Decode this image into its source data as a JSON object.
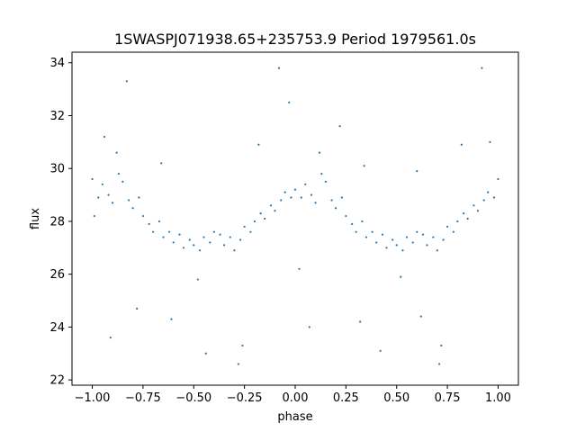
{
  "chart_data": {
    "type": "scatter",
    "title": "1SWASPJ071938.65+235753.9 Period 1979561.0s",
    "xlabel": "phase",
    "ylabel": "flux",
    "xlim": [
      -1.1,
      1.1
    ],
    "ylim": [
      21.8,
      34.4
    ],
    "xticks": [
      -1.0,
      -0.75,
      -0.5,
      -0.25,
      0.0,
      0.25,
      0.5,
      0.75,
      1.0
    ],
    "xtick_labels": [
      "−1.00",
      "−0.75",
      "−0.50",
      "−0.25",
      "0.00",
      "0.25",
      "0.50",
      "0.75",
      "1.00"
    ],
    "yticks": [
      22,
      24,
      26,
      28,
      30,
      32,
      34
    ],
    "ytick_labels": [
      "22",
      "24",
      "26",
      "28",
      "30",
      "32",
      "34"
    ],
    "grid": false,
    "legend": "none",
    "marker_color": "#1f77b4",
    "series": [
      {
        "points": [
          [
            -1.0,
            29.6
          ],
          [
            -0.97,
            28.9
          ],
          [
            -0.95,
            29.4
          ],
          [
            -0.92,
            29.0
          ],
          [
            -0.9,
            28.7
          ],
          [
            -0.87,
            29.8
          ],
          [
            -0.85,
            29.5
          ],
          [
            -0.82,
            28.8
          ],
          [
            -0.8,
            28.5
          ],
          [
            -0.77,
            28.9
          ],
          [
            -0.75,
            28.2
          ],
          [
            -0.72,
            27.9
          ],
          [
            -0.7,
            27.6
          ],
          [
            -0.67,
            28.0
          ],
          [
            -0.65,
            27.4
          ],
          [
            -0.62,
            27.6
          ],
          [
            -0.6,
            27.2
          ],
          [
            -0.57,
            27.5
          ],
          [
            -0.55,
            27.0
          ],
          [
            -0.52,
            27.3
          ],
          [
            -0.5,
            27.1
          ],
          [
            -0.47,
            26.9
          ],
          [
            -0.45,
            27.4
          ],
          [
            -0.42,
            27.2
          ],
          [
            -0.4,
            27.6
          ],
          [
            -0.37,
            27.5
          ],
          [
            -0.35,
            27.1
          ],
          [
            -0.32,
            27.4
          ],
          [
            -0.3,
            26.9
          ],
          [
            -0.27,
            27.3
          ],
          [
            -0.25,
            27.8
          ],
          [
            -0.22,
            27.6
          ],
          [
            -0.2,
            28.0
          ],
          [
            -0.17,
            28.3
          ],
          [
            -0.15,
            28.1
          ],
          [
            -0.12,
            28.6
          ],
          [
            -0.1,
            28.4
          ],
          [
            -0.07,
            28.8
          ],
          [
            -0.05,
            29.1
          ],
          [
            -0.02,
            28.9
          ],
          [
            0.0,
            29.2
          ],
          [
            0.03,
            28.9
          ],
          [
            0.05,
            29.4
          ],
          [
            0.08,
            29.0
          ],
          [
            0.1,
            28.7
          ],
          [
            0.13,
            29.8
          ],
          [
            0.15,
            29.5
          ],
          [
            0.18,
            28.8
          ],
          [
            0.2,
            28.5
          ],
          [
            0.23,
            28.9
          ],
          [
            0.25,
            28.2
          ],
          [
            0.28,
            27.9
          ],
          [
            0.3,
            27.6
          ],
          [
            0.33,
            28.0
          ],
          [
            0.35,
            27.4
          ],
          [
            0.38,
            27.6
          ],
          [
            0.4,
            27.2
          ],
          [
            0.43,
            27.5
          ],
          [
            0.45,
            27.0
          ],
          [
            0.48,
            27.3
          ],
          [
            0.5,
            27.1
          ],
          [
            0.53,
            26.9
          ],
          [
            0.55,
            27.4
          ],
          [
            0.58,
            27.2
          ],
          [
            0.6,
            27.6
          ],
          [
            0.63,
            27.5
          ],
          [
            0.65,
            27.1
          ],
          [
            0.68,
            27.4
          ],
          [
            0.7,
            26.9
          ],
          [
            0.73,
            27.3
          ],
          [
            0.75,
            27.8
          ],
          [
            0.78,
            27.6
          ],
          [
            0.8,
            28.0
          ],
          [
            0.83,
            28.3
          ],
          [
            0.85,
            28.1
          ],
          [
            0.88,
            28.6
          ],
          [
            0.9,
            28.4
          ],
          [
            0.93,
            28.8
          ],
          [
            0.95,
            29.1
          ],
          [
            0.98,
            28.9
          ],
          [
            1.0,
            29.6
          ],
          [
            -0.99,
            28.2
          ],
          [
            -0.88,
            30.6
          ],
          [
            -0.83,
            33.3
          ],
          [
            -0.91,
            23.6
          ],
          [
            -0.78,
            24.7
          ],
          [
            -0.61,
            24.3
          ],
          [
            -0.48,
            25.8
          ],
          [
            -0.44,
            23.0
          ],
          [
            -0.28,
            22.6
          ],
          [
            -0.26,
            23.3
          ],
          [
            -0.18,
            30.9
          ],
          [
            -0.08,
            33.8
          ],
          [
            -0.03,
            32.5
          ],
          [
            0.02,
            26.2
          ],
          [
            0.07,
            24.0
          ],
          [
            0.12,
            30.6
          ],
          [
            0.22,
            31.6
          ],
          [
            0.32,
            24.2
          ],
          [
            0.42,
            23.1
          ],
          [
            0.52,
            25.9
          ],
          [
            0.62,
            24.4
          ],
          [
            0.71,
            22.6
          ],
          [
            0.72,
            23.3
          ],
          [
            0.82,
            30.9
          ],
          [
            0.92,
            33.8
          ],
          [
            0.96,
            31.0
          ],
          [
            -0.94,
            31.2
          ],
          [
            -0.66,
            30.2
          ],
          [
            0.34,
            30.1
          ],
          [
            0.6,
            29.9
          ]
        ]
      }
    ]
  }
}
